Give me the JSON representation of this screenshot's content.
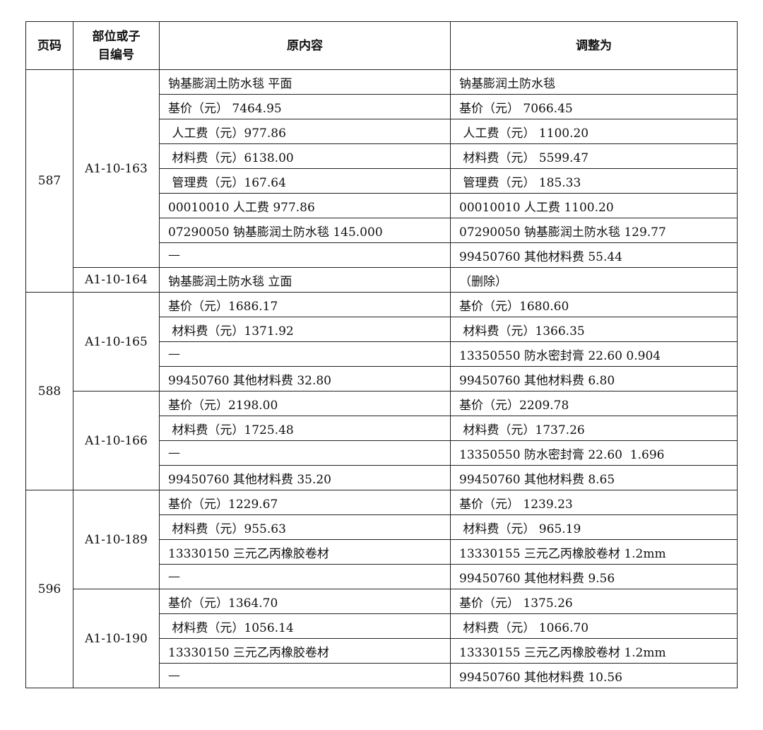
{
  "header": {
    "page": "页码",
    "code": "部位或子目编号",
    "original": "原内容",
    "adjusted": "调整为"
  },
  "groups": [
    {
      "page": "587",
      "items": [
        {
          "code": "A1-10-163",
          "rows": [
            [
              "钠基膨润土防水毯 平面",
              "钠基膨润土防水毯"
            ],
            [
              "基价（元） 7464.95",
              "基价（元） 7066.45"
            ],
            [
              " 人工费（元）977.86",
              " 人工费（元） 1100.20"
            ],
            [
              " 材料费（元）6138.00",
              " 材料费（元） 5599.47"
            ],
            [
              " 管理费（元）167.64",
              " 管理费（元） 185.33"
            ],
            [
              "00010010 人工费 977.86",
              "00010010 人工费 1100.20"
            ],
            [
              "07290050 钠基膨润土防水毯 145.000",
              "07290050 钠基膨润土防水毯 129.77"
            ],
            [
              "—",
              "99450760 其他材料费 55.44"
            ]
          ]
        },
        {
          "code": "A1-10-164",
          "rows": [
            [
              "钠基膨润土防水毯 立面",
              "（删除）"
            ]
          ]
        }
      ]
    },
    {
      "page": "588",
      "items": [
        {
          "code": "A1-10-165",
          "rows": [
            [
              "基价（元）1686.17",
              "基价（元）1680.60"
            ],
            [
              " 材料费（元）1371.92",
              " 材料费（元）1366.35"
            ],
            [
              "—",
              "13350550 防水密封膏 22.60 0.904"
            ],
            [
              "99450760 其他材料费 32.80",
              "99450760 其他材料费 6.80"
            ]
          ]
        },
        {
          "code": "A1-10-166",
          "rows": [
            [
              "基价（元）2198.00",
              "基价（元）2209.78"
            ],
            [
              " 材料费（元）1725.48",
              " 材料费（元）1737.26"
            ],
            [
              "—",
              "13350550 防水密封膏 22.60  1.696"
            ],
            [
              "99450760 其他材料费 35.20",
              "99450760 其他材料费 8.65"
            ]
          ]
        }
      ]
    },
    {
      "page": "596",
      "items": [
        {
          "code": "A1-10-189",
          "rows": [
            [
              "基价（元）1229.67",
              "基价（元） 1239.23"
            ],
            [
              " 材料费（元）955.63",
              " 材料费（元） 965.19"
            ],
            [
              "13330150 三元乙丙橡胶卷材",
              "13330155 三元乙丙橡胶卷材 1.2mm"
            ],
            [
              "—",
              "99450760 其他材料费 9.56"
            ]
          ]
        },
        {
          "code": "A1-10-190",
          "rows": [
            [
              "基价（元）1364.70",
              "基价（元） 1375.26"
            ],
            [
              " 材料费（元）1056.14",
              " 材料费（元） 1066.70"
            ],
            [
              "13330150 三元乙丙橡胶卷材",
              "13330155 三元乙丙橡胶卷材 1.2mm"
            ],
            [
              "—",
              "99450760 其他材料费 10.56"
            ]
          ]
        }
      ]
    }
  ]
}
